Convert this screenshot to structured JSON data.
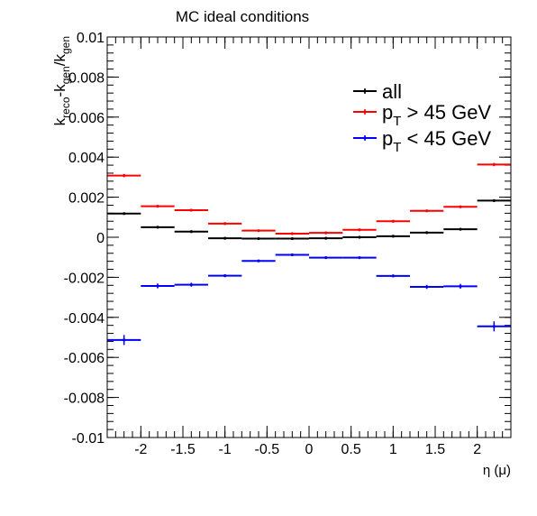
{
  "chart_data": {
    "type": "scatter",
    "title": "MC ideal conditions",
    "xlabel": "η (μ)",
    "ylabel": {
      "base": "k",
      "sub1": "reco",
      "mid": "-k",
      "sub2": "gen",
      "slash": "/k",
      "sub3": "gen"
    },
    "xlim": [
      -2.4,
      2.4
    ],
    "ylim": [
      -0.01,
      0.01
    ],
    "x_ticks": [
      -2,
      -1.5,
      -1,
      -0.5,
      0,
      0.5,
      1,
      1.5,
      2
    ],
    "x_tick_labels": [
      "-2",
      "-1.5",
      "-1",
      "-0.5",
      "0",
      "0.5",
      "1",
      "1.5",
      "2"
    ],
    "y_ticks": [
      -0.01,
      -0.008,
      -0.006,
      -0.004,
      -0.002,
      0,
      0.002,
      0.004,
      0.006,
      0.008,
      0.01
    ],
    "y_tick_labels": [
      "-0.01",
      "-0.008",
      "-0.006",
      "-0.004",
      "-0.002",
      "0",
      "0.002",
      "0.004",
      "0.006",
      "0.008",
      "0.01"
    ],
    "bin_edges": [
      -2.4,
      -2.0,
      -1.6,
      -1.2,
      -0.8,
      -0.4,
      0.0,
      0.4,
      0.8,
      1.2,
      1.6,
      2.0,
      2.4
    ],
    "legend_position": "top-right",
    "series": [
      {
        "name": "all",
        "legend": {
          "main": "all"
        },
        "color": "#000000",
        "values": [
          0.00118,
          0.0005,
          0.00028,
          -5e-05,
          -7e-05,
          -7e-05,
          -5e-05,
          0.0,
          5e-05,
          0.00023,
          0.0004,
          0.00183
        ],
        "errors": [
          5e-05,
          4e-05,
          3e-05,
          3e-05,
          3e-05,
          3e-05,
          3e-05,
          3e-05,
          3e-05,
          3e-05,
          4e-05,
          5e-05
        ]
      },
      {
        "name": "pT > 45 GeV",
        "legend": {
          "main": "p",
          "sub": "T",
          "rest": " > 45 GeV"
        },
        "color": "#ff0000",
        "values": [
          0.00308,
          0.00155,
          0.00135,
          0.00068,
          0.00033,
          0.00018,
          0.00022,
          0.00037,
          0.0008,
          0.00132,
          0.00152,
          0.00363
        ],
        "errors": [
          8e-05,
          5e-05,
          4e-05,
          4e-05,
          3e-05,
          3e-05,
          3e-05,
          3e-05,
          4e-05,
          4e-05,
          5e-05,
          8e-05
        ]
      },
      {
        "name": "pT < 45 GeV",
        "legend": {
          "main": "p",
          "sub": "T",
          "rest": " < 45 GeV"
        },
        "color": "#0000ff",
        "values": [
          -0.00513,
          -0.00243,
          -0.00237,
          -0.00192,
          -0.00118,
          -0.00088,
          -0.00102,
          -0.00102,
          -0.00193,
          -0.00248,
          -0.00245,
          -0.00445
        ],
        "errors": [
          0.00025,
          0.00012,
          0.0001,
          7e-05,
          6e-05,
          5e-05,
          5e-05,
          5e-05,
          7e-05,
          0.0001,
          0.00012,
          0.00025
        ]
      }
    ]
  }
}
